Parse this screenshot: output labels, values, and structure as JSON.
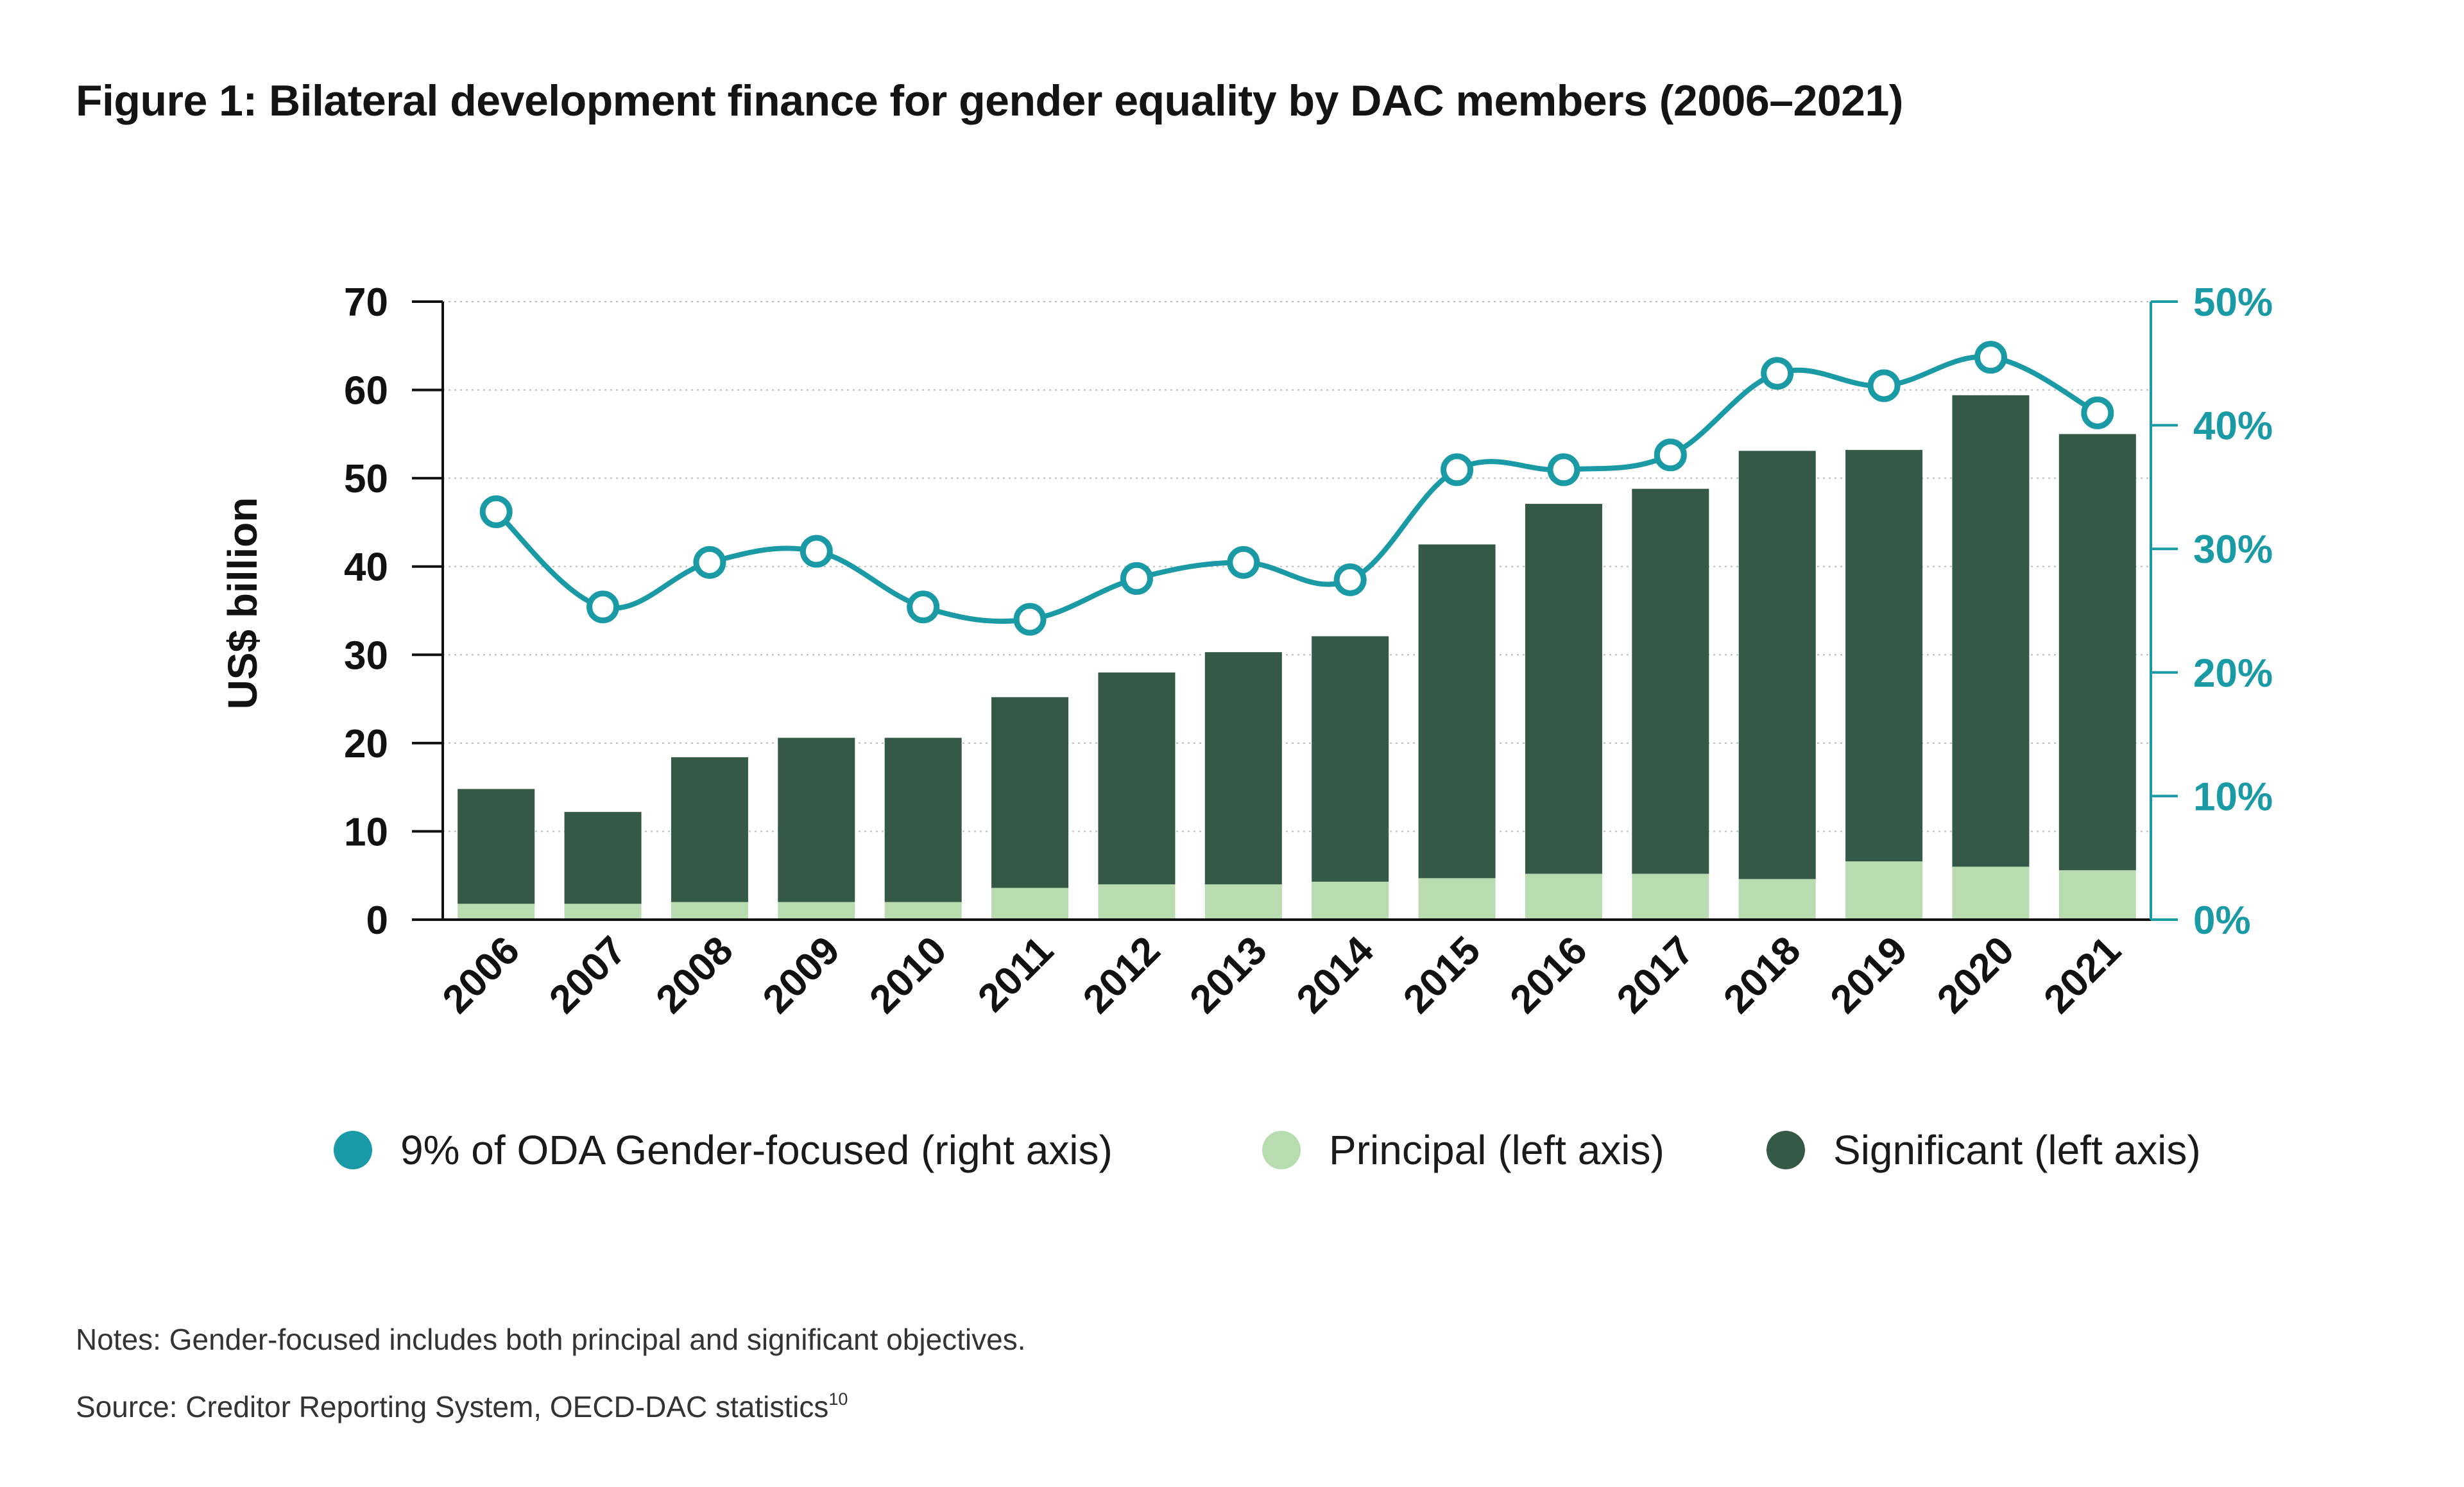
{
  "figure": {
    "title": "Figure 1: Bilateral development finance for gender equality by DAC members (2006–2021)",
    "notes": "Notes: Gender-focused includes both principal and significant objectives.",
    "source": "Source: Creditor Reporting System, OECD-DAC statistics",
    "source_footnote": "10"
  },
  "chart_data": {
    "type": "bar",
    "stacked": true,
    "categories": [
      "2006",
      "2007",
      "2008",
      "2009",
      "2010",
      "2011",
      "2012",
      "2013",
      "2014",
      "2015",
      "2016",
      "2017",
      "2018",
      "2019",
      "2020",
      "2021"
    ],
    "ylabel": "US$ billion",
    "ylim": [
      0,
      70
    ],
    "yticks": [
      0,
      10,
      20,
      30,
      40,
      50,
      60,
      70
    ],
    "y2lim": [
      0,
      50
    ],
    "y2ticks": [
      0,
      10,
      20,
      30,
      40,
      50
    ],
    "y2tick_labels": [
      "0%",
      "10%",
      "20%",
      "30%",
      "40%",
      "50%"
    ],
    "series": [
      {
        "name": "Principal (left axis)",
        "kind": "bar",
        "axis": "left",
        "color": "#b8dcb0",
        "values": [
          1.8,
          1.8,
          2.0,
          2.0,
          2.0,
          3.6,
          4.0,
          4.0,
          4.3,
          4.7,
          5.2,
          5.2,
          4.6,
          6.6,
          6.0,
          5.6
        ]
      },
      {
        "name": "Significant (left axis)",
        "kind": "bar",
        "axis": "left",
        "color": "#355947",
        "values": [
          13.0,
          10.4,
          16.4,
          18.6,
          18.6,
          21.6,
          24.0,
          26.3,
          27.8,
          37.8,
          41.9,
          43.6,
          48.5,
          46.6,
          53.4,
          49.4
        ]
      },
      {
        "name": "9% of ODA Gender-focused (right axis)",
        "kind": "line",
        "axis": "right",
        "color": "#1a9aa5",
        "values": [
          33.0,
          25.3,
          28.9,
          29.8,
          25.3,
          24.3,
          27.6,
          28.9,
          27.5,
          36.4,
          36.4,
          37.6,
          44.2,
          43.2,
          45.5,
          41.0
        ]
      }
    ],
    "legend_position": "bottom",
    "grid": true
  }
}
